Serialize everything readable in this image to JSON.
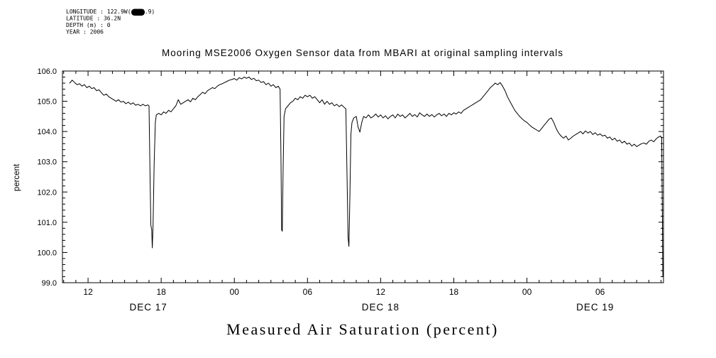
{
  "meta": {
    "longitude": "LONGITUDE : 122.9W(-122.9)",
    "latitude": "LATITUDE : 36.2N",
    "depth": "DEPTH (m) : 0",
    "year": "YEAR : 2006"
  },
  "chart_data": {
    "type": "line",
    "title": "Mooring MSE2006 Oxygen Sensor data from MBARI at original sampling intervals",
    "xlabel": "Measured Air Saturation (percent)",
    "ylabel": "percent",
    "x_unit": "hours since 2006-12-17 00:00",
    "x_range": [
      9.9,
      59.2
    ],
    "y_range": [
      99.0,
      106.0
    ],
    "y_ticks": [
      99.0,
      100.0,
      101.0,
      102.0,
      103.0,
      104.0,
      105.0,
      106.0
    ],
    "y_minor_step": 0.2,
    "x_minor_step": 1,
    "x_major_ticks": [
      {
        "t": 12,
        "label": "12"
      },
      {
        "t": 18,
        "label": "18"
      },
      {
        "t": 24,
        "label": "00"
      },
      {
        "t": 30,
        "label": "06"
      },
      {
        "t": 36,
        "label": "12"
      },
      {
        "t": 42,
        "label": "18"
      },
      {
        "t": 48,
        "label": "00"
      },
      {
        "t": 54,
        "label": "06"
      }
    ],
    "day_labels": [
      {
        "label": "DEC 17",
        "center_t": 16.95
      },
      {
        "label": "DEC 18",
        "center_t": 36.0
      },
      {
        "label": "DEC 19",
        "center_t": 53.6
      }
    ],
    "grid": false,
    "legend": "none",
    "line_color": "#000000",
    "background": "#ffffff",
    "points": [
      [
        10.5,
        105.6
      ],
      [
        10.7,
        105.7
      ],
      [
        10.9,
        105.62
      ],
      [
        11.1,
        105.55
      ],
      [
        11.3,
        105.58
      ],
      [
        11.5,
        105.5
      ],
      [
        11.7,
        105.55
      ],
      [
        11.9,
        105.45
      ],
      [
        12.1,
        105.5
      ],
      [
        12.3,
        105.42
      ],
      [
        12.5,
        105.45
      ],
      [
        12.7,
        105.35
      ],
      [
        12.9,
        105.38
      ],
      [
        13.1,
        105.28
      ],
      [
        13.3,
        105.2
      ],
      [
        13.5,
        105.24
      ],
      [
        13.7,
        105.15
      ],
      [
        13.9,
        105.1
      ],
      [
        14.1,
        105.05
      ],
      [
        14.3,
        105.0
      ],
      [
        14.5,
        105.05
      ],
      [
        14.7,
        104.97
      ],
      [
        14.9,
        105.0
      ],
      [
        15.1,
        104.92
      ],
      [
        15.3,
        104.97
      ],
      [
        15.5,
        104.9
      ],
      [
        15.7,
        104.95
      ],
      [
        15.9,
        104.87
      ],
      [
        16.1,
        104.9
      ],
      [
        16.3,
        104.85
      ],
      [
        16.5,
        104.9
      ],
      [
        16.7,
        104.85
      ],
      [
        16.9,
        104.88
      ],
      [
        17.0,
        104.85
      ],
      [
        17.08,
        102.6
      ],
      [
        17.15,
        100.9
      ],
      [
        17.22,
        100.75
      ],
      [
        17.27,
        100.15
      ],
      [
        17.33,
        100.9
      ],
      [
        17.42,
        102.9
      ],
      [
        17.52,
        104.3
      ],
      [
        17.6,
        104.55
      ],
      [
        17.8,
        104.6
      ],
      [
        18.0,
        104.55
      ],
      [
        18.2,
        104.65
      ],
      [
        18.4,
        104.6
      ],
      [
        18.6,
        104.7
      ],
      [
        18.8,
        104.65
      ],
      [
        19.0,
        104.75
      ],
      [
        19.2,
        104.85
      ],
      [
        19.4,
        105.05
      ],
      [
        19.6,
        104.9
      ],
      [
        19.8,
        104.95
      ],
      [
        20.0,
        105.0
      ],
      [
        20.2,
        105.05
      ],
      [
        20.4,
        104.98
      ],
      [
        20.6,
        105.1
      ],
      [
        20.8,
        105.05
      ],
      [
        21.0,
        105.15
      ],
      [
        21.2,
        105.22
      ],
      [
        21.4,
        105.3
      ],
      [
        21.6,
        105.25
      ],
      [
        21.8,
        105.35
      ],
      [
        22.0,
        105.4
      ],
      [
        22.2,
        105.45
      ],
      [
        22.4,
        105.42
      ],
      [
        22.6,
        105.5
      ],
      [
        22.8,
        105.55
      ],
      [
        23.0,
        105.58
      ],
      [
        23.2,
        105.62
      ],
      [
        23.4,
        105.66
      ],
      [
        23.6,
        105.7
      ],
      [
        23.8,
        105.72
      ],
      [
        24.0,
        105.75
      ],
      [
        24.2,
        105.7
      ],
      [
        24.4,
        105.78
      ],
      [
        24.6,
        105.74
      ],
      [
        24.8,
        105.8
      ],
      [
        25.0,
        105.76
      ],
      [
        25.2,
        105.8
      ],
      [
        25.4,
        105.72
      ],
      [
        25.6,
        105.76
      ],
      [
        25.8,
        105.68
      ],
      [
        26.0,
        105.7
      ],
      [
        26.2,
        105.62
      ],
      [
        26.4,
        105.65
      ],
      [
        26.6,
        105.55
      ],
      [
        26.8,
        105.6
      ],
      [
        27.0,
        105.5
      ],
      [
        27.2,
        105.55
      ],
      [
        27.4,
        105.45
      ],
      [
        27.6,
        105.5
      ],
      [
        27.75,
        105.4
      ],
      [
        27.82,
        103.2
      ],
      [
        27.88,
        100.75
      ],
      [
        27.93,
        100.7
      ],
      [
        28.0,
        102.8
      ],
      [
        28.08,
        104.5
      ],
      [
        28.2,
        104.75
      ],
      [
        28.4,
        104.85
      ],
      [
        28.6,
        104.95
      ],
      [
        28.8,
        105.0
      ],
      [
        29.0,
        105.1
      ],
      [
        29.2,
        105.05
      ],
      [
        29.4,
        105.15
      ],
      [
        29.6,
        105.1
      ],
      [
        29.8,
        105.2
      ],
      [
        30.0,
        105.15
      ],
      [
        30.2,
        105.2
      ],
      [
        30.4,
        105.1
      ],
      [
        30.6,
        105.15
      ],
      [
        30.8,
        105.05
      ],
      [
        31.0,
        104.95
      ],
      [
        31.2,
        105.05
      ],
      [
        31.4,
        104.9
      ],
      [
        31.6,
        105.0
      ],
      [
        31.8,
        104.9
      ],
      [
        32.0,
        104.95
      ],
      [
        32.2,
        104.85
      ],
      [
        32.4,
        104.9
      ],
      [
        32.6,
        104.82
      ],
      [
        32.8,
        104.88
      ],
      [
        33.0,
        104.8
      ],
      [
        33.15,
        104.75
      ],
      [
        33.25,
        102.3
      ],
      [
        33.33,
        100.5
      ],
      [
        33.4,
        100.2
      ],
      [
        33.48,
        101.9
      ],
      [
        33.56,
        103.9
      ],
      [
        33.65,
        104.3
      ],
      [
        33.8,
        104.45
      ],
      [
        34.0,
        104.5
      ],
      [
        34.15,
        104.15
      ],
      [
        34.3,
        103.98
      ],
      [
        34.45,
        104.3
      ],
      [
        34.6,
        104.5
      ],
      [
        34.8,
        104.45
      ],
      [
        35.0,
        104.55
      ],
      [
        35.2,
        104.45
      ],
      [
        35.4,
        104.5
      ],
      [
        35.6,
        104.58
      ],
      [
        35.8,
        104.48
      ],
      [
        36.0,
        104.55
      ],
      [
        36.2,
        104.45
      ],
      [
        36.4,
        104.52
      ],
      [
        36.6,
        104.42
      ],
      [
        36.8,
        104.5
      ],
      [
        37.0,
        104.55
      ],
      [
        37.2,
        104.45
      ],
      [
        37.4,
        104.58
      ],
      [
        37.6,
        104.5
      ],
      [
        37.8,
        104.55
      ],
      [
        38.0,
        104.45
      ],
      [
        38.2,
        104.52
      ],
      [
        38.4,
        104.6
      ],
      [
        38.6,
        104.5
      ],
      [
        38.8,
        104.56
      ],
      [
        39.0,
        104.48
      ],
      [
        39.2,
        104.62
      ],
      [
        39.4,
        104.55
      ],
      [
        39.6,
        104.5
      ],
      [
        39.8,
        104.58
      ],
      [
        40.0,
        104.5
      ],
      [
        40.2,
        104.56
      ],
      [
        40.4,
        104.48
      ],
      [
        40.6,
        104.55
      ],
      [
        40.8,
        104.6
      ],
      [
        41.0,
        104.52
      ],
      [
        41.2,
        104.58
      ],
      [
        41.4,
        104.5
      ],
      [
        41.6,
        104.6
      ],
      [
        41.8,
        104.55
      ],
      [
        42.0,
        104.62
      ],
      [
        42.2,
        104.58
      ],
      [
        42.4,
        104.65
      ],
      [
        42.6,
        104.6
      ],
      [
        42.8,
        104.7
      ],
      [
        43.0,
        104.75
      ],
      [
        43.2,
        104.8
      ],
      [
        43.4,
        104.85
      ],
      [
        43.6,
        104.9
      ],
      [
        43.8,
        104.95
      ],
      [
        44.0,
        105.0
      ],
      [
        44.2,
        105.05
      ],
      [
        44.4,
        105.15
      ],
      [
        44.6,
        105.25
      ],
      [
        44.8,
        105.35
      ],
      [
        45.0,
        105.45
      ],
      [
        45.2,
        105.52
      ],
      [
        45.4,
        105.6
      ],
      [
        45.6,
        105.55
      ],
      [
        45.8,
        105.62
      ],
      [
        46.0,
        105.5
      ],
      [
        46.2,
        105.35
      ],
      [
        46.4,
        105.15
      ],
      [
        46.6,
        105.0
      ],
      [
        46.8,
        104.85
      ],
      [
        47.0,
        104.7
      ],
      [
        47.2,
        104.6
      ],
      [
        47.4,
        104.5
      ],
      [
        47.6,
        104.42
      ],
      [
        47.8,
        104.35
      ],
      [
        48.0,
        104.3
      ],
      [
        48.2,
        104.22
      ],
      [
        48.4,
        104.15
      ],
      [
        48.6,
        104.1
      ],
      [
        48.8,
        104.05
      ],
      [
        49.0,
        104.0
      ],
      [
        49.2,
        104.1
      ],
      [
        49.4,
        104.2
      ],
      [
        49.6,
        104.3
      ],
      [
        49.8,
        104.4
      ],
      [
        50.0,
        104.45
      ],
      [
        50.2,
        104.3
      ],
      [
        50.4,
        104.1
      ],
      [
        50.6,
        103.95
      ],
      [
        50.8,
        103.85
      ],
      [
        51.0,
        103.78
      ],
      [
        51.2,
        103.85
      ],
      [
        51.4,
        103.72
      ],
      [
        51.6,
        103.78
      ],
      [
        51.8,
        103.85
      ],
      [
        52.0,
        103.9
      ],
      [
        52.2,
        103.95
      ],
      [
        52.4,
        104.0
      ],
      [
        52.6,
        103.92
      ],
      [
        52.8,
        104.02
      ],
      [
        53.0,
        103.95
      ],
      [
        53.2,
        104.0
      ],
      [
        53.4,
        103.9
      ],
      [
        53.6,
        103.96
      ],
      [
        53.8,
        103.88
      ],
      [
        54.0,
        103.92
      ],
      [
        54.2,
        103.85
      ],
      [
        54.4,
        103.88
      ],
      [
        54.6,
        103.78
      ],
      [
        54.8,
        103.82
      ],
      [
        55.0,
        103.72
      ],
      [
        55.2,
        103.78
      ],
      [
        55.4,
        103.68
      ],
      [
        55.6,
        103.72
      ],
      [
        55.8,
        103.62
      ],
      [
        56.0,
        103.68
      ],
      [
        56.2,
        103.58
      ],
      [
        56.4,
        103.62
      ],
      [
        56.6,
        103.52
      ],
      [
        56.8,
        103.58
      ],
      [
        57.0,
        103.5
      ],
      [
        57.2,
        103.55
      ],
      [
        57.4,
        103.6
      ],
      [
        57.6,
        103.62
      ],
      [
        57.8,
        103.58
      ],
      [
        58.0,
        103.68
      ],
      [
        58.2,
        103.72
      ],
      [
        58.4,
        103.66
      ],
      [
        58.6,
        103.76
      ],
      [
        58.8,
        103.82
      ],
      [
        58.95,
        103.85
      ],
      [
        59.05,
        103.8
      ],
      [
        59.1,
        101.5
      ],
      [
        59.15,
        99.2
      ]
    ]
  }
}
